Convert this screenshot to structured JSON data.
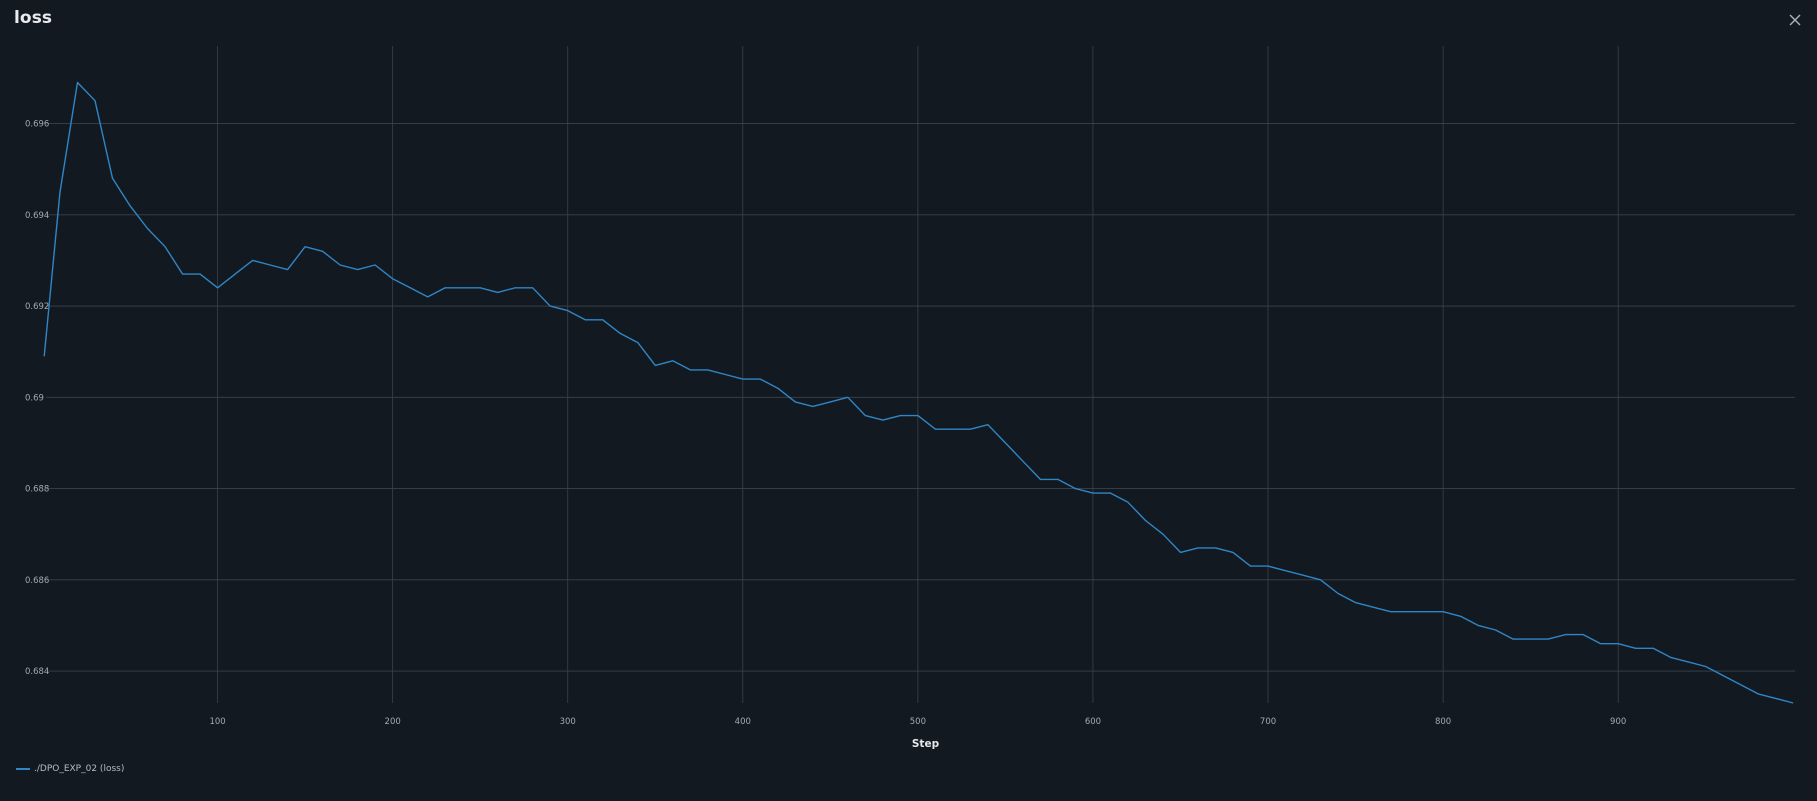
{
  "window": {
    "title": "loss",
    "close_icon": "close-icon"
  },
  "colors": {
    "background": "#131920",
    "grid": "#3a424c",
    "series": "#2f86c6",
    "tick_text": "#a3aab3"
  },
  "chart_data": {
    "type": "line",
    "title": "loss",
    "xlabel": "Step",
    "ylabel": "",
    "xlim": [
      2,
      1001
    ],
    "ylim": [
      0.6833,
      0.6977
    ],
    "x_ticks": [
      100,
      200,
      300,
      400,
      500,
      600,
      700,
      800,
      900
    ],
    "x_tick_labels": [
      "100",
      "200",
      "300",
      "400",
      "500",
      "600",
      "700",
      "800",
      "900"
    ],
    "y_ticks": [
      0.696,
      0.694,
      0.692,
      0.69,
      0.688,
      0.686,
      0.684
    ],
    "y_tick_labels": [
      "0.696",
      "0.694",
      "0.692",
      "0.69",
      "0.688",
      "0.686",
      "0.684"
    ],
    "grid": true,
    "legend_position": "bottom-left",
    "series": [
      {
        "name": "./DPO_EXP_02 (loss)",
        "x": [
          1,
          10,
          20,
          30,
          40,
          50,
          60,
          70,
          80,
          90,
          100,
          110,
          120,
          130,
          140,
          150,
          160,
          170,
          180,
          190,
          200,
          210,
          220,
          230,
          240,
          250,
          260,
          270,
          280,
          290,
          300,
          310,
          320,
          330,
          340,
          350,
          360,
          370,
          380,
          390,
          400,
          410,
          420,
          430,
          440,
          450,
          460,
          470,
          480,
          490,
          500,
          510,
          520,
          530,
          540,
          550,
          560,
          570,
          580,
          590,
          600,
          610,
          620,
          630,
          640,
          650,
          660,
          670,
          680,
          690,
          700,
          710,
          720,
          730,
          740,
          750,
          760,
          770,
          780,
          790,
          800,
          810,
          820,
          830,
          840,
          850,
          860,
          870,
          880,
          890,
          900,
          910,
          920,
          930,
          940,
          950,
          960,
          970,
          980,
          990,
          1000
        ],
        "values": [
          0.6909,
          0.6945,
          0.6969,
          0.6965,
          0.6948,
          0.6942,
          0.6937,
          0.6933,
          0.6927,
          0.6927,
          0.6924,
          0.6927,
          0.693,
          0.6929,
          0.6928,
          0.6933,
          0.6932,
          0.6929,
          0.6928,
          0.6929,
          0.6926,
          0.6924,
          0.6922,
          0.6924,
          0.6924,
          0.6924,
          0.6923,
          0.6924,
          0.6924,
          0.692,
          0.6919,
          0.6917,
          0.6917,
          0.6914,
          0.6912,
          0.6907,
          0.6908,
          0.6906,
          0.6906,
          0.6905,
          0.6904,
          0.6904,
          0.6902,
          0.6899,
          0.6898,
          0.6899,
          0.69,
          0.6896,
          0.6895,
          0.6896,
          0.6896,
          0.6893,
          0.6893,
          0.6893,
          0.6894,
          0.689,
          0.6886,
          0.6882,
          0.6882,
          0.688,
          0.6879,
          0.6879,
          0.6877,
          0.6873,
          0.687,
          0.6866,
          0.6867,
          0.6867,
          0.6866,
          0.6863,
          0.6863,
          0.6862,
          0.6861,
          0.686,
          0.6857,
          0.6855,
          0.6854,
          0.6853,
          0.6853,
          0.6853,
          0.6853,
          0.6852,
          0.685,
          0.6849,
          0.6847,
          0.6847,
          0.6847,
          0.6848,
          0.6848,
          0.6846,
          0.6846,
          0.6845,
          0.6845,
          0.6843,
          0.6842,
          0.6841,
          0.6839,
          0.6837,
          0.6835,
          0.6834,
          0.6833
        ]
      }
    ]
  }
}
